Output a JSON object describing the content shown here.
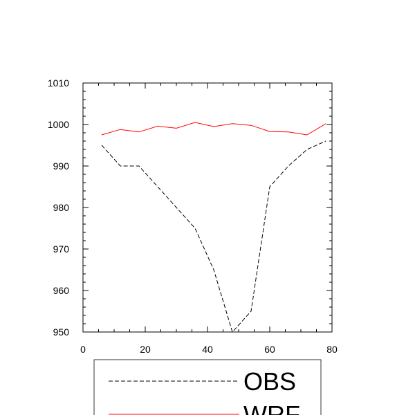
{
  "chart_data": {
    "type": "line",
    "xlim": [
      0,
      80
    ],
    "ylim": [
      950,
      1010
    ],
    "x_ticks": [
      0,
      20,
      40,
      60,
      80
    ],
    "y_ticks": [
      950,
      960,
      970,
      980,
      990,
      1000,
      1010
    ],
    "grid": false,
    "legend_placement": "bottom",
    "series": [
      {
        "name": "OBS",
        "color": "#000000",
        "dash": "dashed",
        "x": [
          6,
          12,
          18,
          24,
          30,
          36,
          42,
          48,
          54,
          60,
          66,
          72,
          78
        ],
        "y": [
          995,
          990,
          990,
          985,
          980,
          975,
          965,
          950,
          955,
          985,
          990,
          994,
          996
        ]
      },
      {
        "name": "WRF",
        "color": "#ff0000",
        "dash": "solid",
        "x": [
          6,
          12,
          18,
          24,
          30,
          36,
          42,
          48,
          54,
          60,
          66,
          72,
          78
        ],
        "y": [
          997.5,
          998.8,
          998.2,
          999.6,
          999.1,
          1000.5,
          999.5,
          1000.2,
          999.8,
          998.3,
          998.2,
          997.5,
          1000.2
        ]
      }
    ]
  }
}
